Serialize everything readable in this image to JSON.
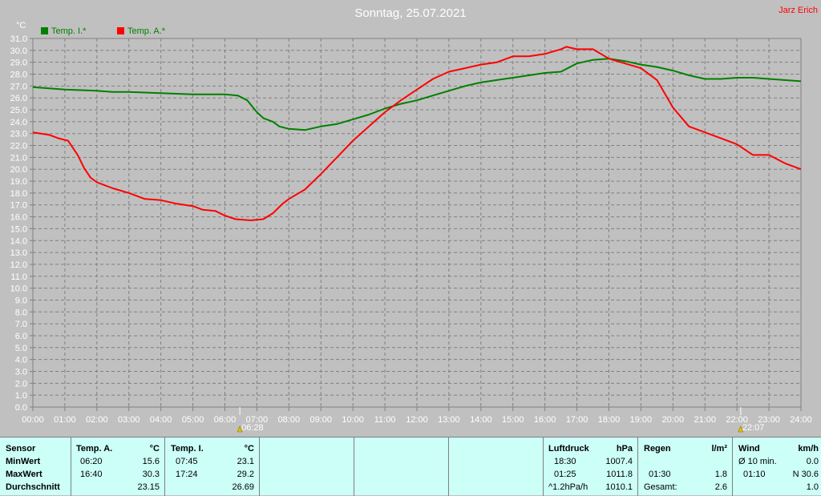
{
  "header": {
    "title": "Sonntag, 25.07.2021",
    "author": "Jarz Erich"
  },
  "chart_data": {
    "type": "line",
    "ylabel": "°C",
    "ylim": [
      0,
      31
    ],
    "y_ticks": [
      "0.0",
      "1.0",
      "2.0",
      "3.0",
      "4.0",
      "5.0",
      "6.0",
      "7.0",
      "8.0",
      "9.0",
      "10.0",
      "11.0",
      "12.0",
      "13.0",
      "14.0",
      "15.0",
      "16.0",
      "17.0",
      "18.0",
      "19.0",
      "20.0",
      "21.0",
      "22.0",
      "23.0",
      "24.0",
      "25.0",
      "26.0",
      "27.0",
      "28.0",
      "29.0",
      "30.0",
      "31.0"
    ],
    "x_ticks": [
      "00:00",
      "01:00",
      "02:00",
      "03:00",
      "04:00",
      "05:00",
      "06:00",
      "07:00",
      "08:00",
      "09:00",
      "10:00",
      "11:00",
      "12:00",
      "13:00",
      "14:00",
      "15:00",
      "16:00",
      "17:00",
      "18:00",
      "19:00",
      "20:00",
      "21:00",
      "22:00",
      "23:00",
      "24:00"
    ],
    "xlim": [
      0,
      24
    ],
    "grid": true,
    "legend": "top-left",
    "markers": [
      {
        "hour": 6.467,
        "label": "06:28",
        "icon": "sunrise-icon"
      },
      {
        "hour": 22.117,
        "label": "22:07",
        "icon": "sunset-icon"
      }
    ],
    "series": [
      {
        "name": "Temp. I.*",
        "color": "#008000",
        "points": [
          [
            0,
            26.9
          ],
          [
            1,
            26.7
          ],
          [
            2,
            26.6
          ],
          [
            2.5,
            26.5
          ],
          [
            3,
            26.5
          ],
          [
            4,
            26.4
          ],
          [
            5,
            26.3
          ],
          [
            6,
            26.3
          ],
          [
            6.4,
            26.2
          ],
          [
            6.7,
            25.8
          ],
          [
            7,
            24.8
          ],
          [
            7.2,
            24.3
          ],
          [
            7.5,
            24.0
          ],
          [
            7.7,
            23.6
          ],
          [
            8,
            23.4
          ],
          [
            8.5,
            23.3
          ],
          [
            9,
            23.6
          ],
          [
            9.5,
            23.8
          ],
          [
            10,
            24.2
          ],
          [
            10.5,
            24.6
          ],
          [
            11,
            25.1
          ],
          [
            11.5,
            25.5
          ],
          [
            12,
            25.8
          ],
          [
            12.5,
            26.2
          ],
          [
            13,
            26.6
          ],
          [
            13.5,
            27.0
          ],
          [
            14,
            27.3
          ],
          [
            14.5,
            27.5
          ],
          [
            15,
            27.7
          ],
          [
            15.5,
            27.9
          ],
          [
            16,
            28.1
          ],
          [
            16.5,
            28.2
          ],
          [
            17,
            28.9
          ],
          [
            17.5,
            29.2
          ],
          [
            18,
            29.3
          ],
          [
            18.5,
            29.1
          ],
          [
            19,
            28.8
          ],
          [
            19.5,
            28.6
          ],
          [
            20,
            28.3
          ],
          [
            20.5,
            27.9
          ],
          [
            21,
            27.6
          ],
          [
            21.5,
            27.6
          ],
          [
            22,
            27.7
          ],
          [
            22.5,
            27.7
          ],
          [
            23,
            27.6
          ],
          [
            24,
            27.4
          ]
        ]
      },
      {
        "name": "Temp. A.*",
        "color": "#ff0000",
        "points": [
          [
            0,
            23.1
          ],
          [
            0.5,
            22.9
          ],
          [
            0.8,
            22.6
          ],
          [
            1.1,
            22.4
          ],
          [
            1.4,
            21.2
          ],
          [
            1.6,
            20.1
          ],
          [
            1.8,
            19.3
          ],
          [
            2,
            18.9
          ],
          [
            2.5,
            18.4
          ],
          [
            3,
            18.0
          ],
          [
            3.5,
            17.5
          ],
          [
            4,
            17.4
          ],
          [
            4.5,
            17.1
          ],
          [
            5,
            16.9
          ],
          [
            5.3,
            16.6
          ],
          [
            5.7,
            16.5
          ],
          [
            6,
            16.1
          ],
          [
            6.33,
            15.8
          ],
          [
            6.8,
            15.7
          ],
          [
            7.2,
            15.8
          ],
          [
            7.5,
            16.3
          ],
          [
            7.8,
            17.1
          ],
          [
            8,
            17.5
          ],
          [
            8.5,
            18.3
          ],
          [
            9,
            19.6
          ],
          [
            9.5,
            21.0
          ],
          [
            10,
            22.4
          ],
          [
            10.5,
            23.6
          ],
          [
            11,
            24.8
          ],
          [
            11.5,
            25.8
          ],
          [
            12,
            26.7
          ],
          [
            12.5,
            27.6
          ],
          [
            13,
            28.2
          ],
          [
            13.5,
            28.5
          ],
          [
            14,
            28.8
          ],
          [
            14.5,
            29.0
          ],
          [
            15,
            29.5
          ],
          [
            15.5,
            29.5
          ],
          [
            16,
            29.7
          ],
          [
            16.5,
            30.1
          ],
          [
            16.67,
            30.3
          ],
          [
            17,
            30.1
          ],
          [
            17.5,
            30.1
          ],
          [
            18,
            29.3
          ],
          [
            18.5,
            28.9
          ],
          [
            19,
            28.5
          ],
          [
            19.5,
            27.5
          ],
          [
            20,
            25.2
          ],
          [
            20.5,
            23.6
          ],
          [
            21,
            23.1
          ],
          [
            21.5,
            22.6
          ],
          [
            22,
            22.1
          ],
          [
            22.5,
            21.2
          ],
          [
            23,
            21.2
          ],
          [
            23.5,
            20.5
          ],
          [
            24,
            20.0
          ]
        ]
      }
    ]
  },
  "stats": {
    "sensor": {
      "header": "Sensor",
      "rows": [
        "MinWert",
        "MaxWert",
        "Durchschnitt"
      ]
    },
    "temp_a": {
      "header": "Temp. A.",
      "unit": "°C",
      "min_time": "06:20",
      "min_val": "15.6",
      "max_time": "16:40",
      "max_val": "30.3",
      "avg": "23.15"
    },
    "temp_i": {
      "header": "Temp. I.",
      "unit": "°C",
      "min_time": "07:45",
      "min_val": "23.1",
      "max_time": "17:24",
      "max_val": "29.2",
      "avg": "26.69"
    },
    "luftdruck": {
      "header": "Luftdruck",
      "unit": "hPa",
      "min_time": "18:30",
      "min_val": "1007.4",
      "max_time": "01:25",
      "max_val": "1011.8",
      "trend_label": "^1.2hPa/h",
      "trend_val": "1010.1"
    },
    "regen": {
      "header": "Regen",
      "unit": "l/m²",
      "max_time": "01:30",
      "max_val": "1.8",
      "total_label": "Gesamt:",
      "total_val": "2.6"
    },
    "wind": {
      "header": "Wind",
      "unit": "km/h",
      "avg_label": "Ø 10 min.",
      "avg_val": "0.0",
      "max_time": "01:10",
      "max_val": "N 30.6",
      "last_val": "1.0"
    }
  }
}
